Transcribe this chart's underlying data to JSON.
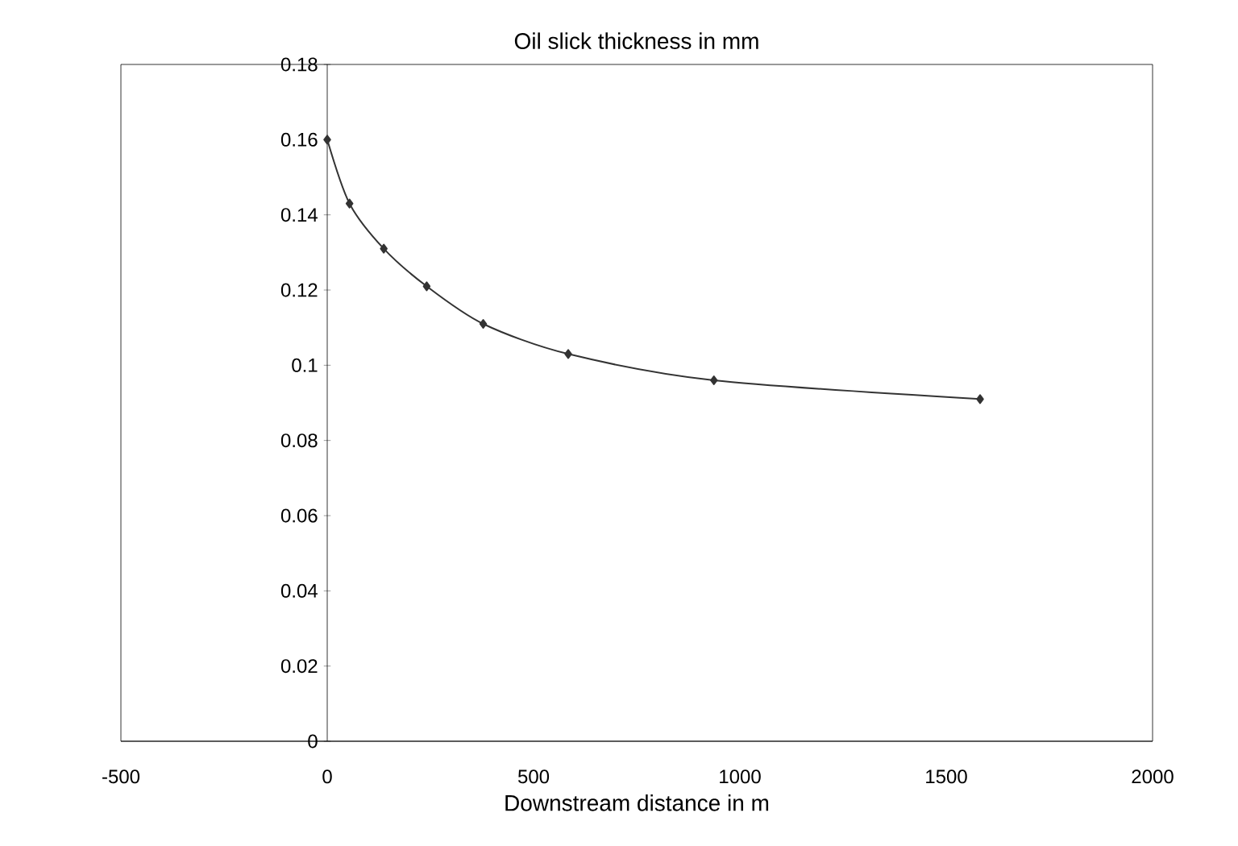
{
  "chart_data": {
    "type": "line",
    "title": "Oil slick thickness in mm",
    "xlabel": "Downstream distance in m",
    "x": [
      0,
      54,
      137,
      241,
      378,
      584,
      937,
      1582
    ],
    "series": [
      {
        "color": "#333333",
        "values": [
          0.16,
          0.143,
          0.131,
          0.121,
          0.111,
          0.103,
          0.096,
          0.091
        ]
      }
    ],
    "xlim": [
      -500,
      2000
    ],
    "xticks": [
      -500,
      0,
      500,
      1000,
      1500,
      2000
    ],
    "ylim": [
      0,
      0.18
    ],
    "yticks": [
      0,
      0.02,
      0.04,
      0.06,
      0.08,
      0.1,
      0.12,
      0.14,
      0.16,
      0.18
    ],
    "marker": "diamond",
    "line_style": "solid",
    "grid": false
  }
}
